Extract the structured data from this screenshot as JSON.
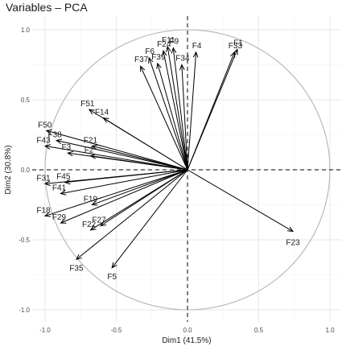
{
  "chart_data": {
    "type": "scatter",
    "subtype": "pca-correlation-circle",
    "title": "Variables – PCA",
    "xlabel": "Dim1 (41.5%)",
    "ylabel": "Dim2 (30.8%)",
    "xlim": [
      -1.0,
      1.0
    ],
    "ylim": [
      -1.0,
      1.0
    ],
    "x_ticks": [
      -1.0,
      -0.5,
      0.0,
      0.5,
      1.0
    ],
    "y_ticks": [
      -1.0,
      -0.5,
      0.0,
      0.5,
      1.0
    ],
    "x_tick_labels": [
      "-1.0",
      "-0.5",
      "0.0",
      "0.5",
      "1.0"
    ],
    "y_tick_labels": [
      "-1.0",
      "-0.5",
      "0.0",
      "0.5",
      "1.0"
    ],
    "grid": true,
    "unit_circle": true,
    "variables": [
      {
        "name": "F1",
        "x": 0.35,
        "y": 0.86
      },
      {
        "name": "F33",
        "x": 0.33,
        "y": 0.84
      },
      {
        "name": "F4",
        "x": 0.06,
        "y": 0.84
      },
      {
        "name": "F11",
        "x": -0.14,
        "y": 0.88
      },
      {
        "name": "F9",
        "x": -0.1,
        "y": 0.87
      },
      {
        "name": "F24",
        "x": -0.17,
        "y": 0.85
      },
      {
        "name": "F6",
        "x": -0.27,
        "y": 0.8
      },
      {
        "name": "F37",
        "x": -0.33,
        "y": 0.74
      },
      {
        "name": "F39",
        "x": -0.21,
        "y": 0.76
      },
      {
        "name": "F34",
        "x": -0.04,
        "y": 0.75
      },
      {
        "name": "F51",
        "x": -0.69,
        "y": 0.43
      },
      {
        "name": "F14",
        "x": -0.59,
        "y": 0.37
      },
      {
        "name": "F50",
        "x": -0.99,
        "y": 0.28
      },
      {
        "name": "F38",
        "x": -0.92,
        "y": 0.21
      },
      {
        "name": "F43",
        "x": -1.0,
        "y": 0.17
      },
      {
        "name": "F21",
        "x": -0.67,
        "y": 0.17
      },
      {
        "name": "F3",
        "x": -0.84,
        "y": 0.12
      },
      {
        "name": "F2",
        "x": -0.68,
        "y": 0.1
      },
      {
        "name": "F31",
        "x": -1.0,
        "y": -0.1
      },
      {
        "name": "F45",
        "x": -0.86,
        "y": -0.09
      },
      {
        "name": "F41",
        "x": -0.89,
        "y": -0.17
      },
      {
        "name": "F18",
        "x": -1.0,
        "y": -0.33
      },
      {
        "name": "F19",
        "x": -0.67,
        "y": -0.25
      },
      {
        "name": "F29",
        "x": -0.89,
        "y": -0.38
      },
      {
        "name": "F27",
        "x": -0.61,
        "y": -0.4
      },
      {
        "name": "F22",
        "x": -0.68,
        "y": -0.43
      },
      {
        "name": "F35",
        "x": -0.78,
        "y": -0.64
      },
      {
        "name": "F5",
        "x": -0.53,
        "y": -0.7
      },
      {
        "name": "F23",
        "x": 0.74,
        "y": -0.44
      }
    ]
  }
}
